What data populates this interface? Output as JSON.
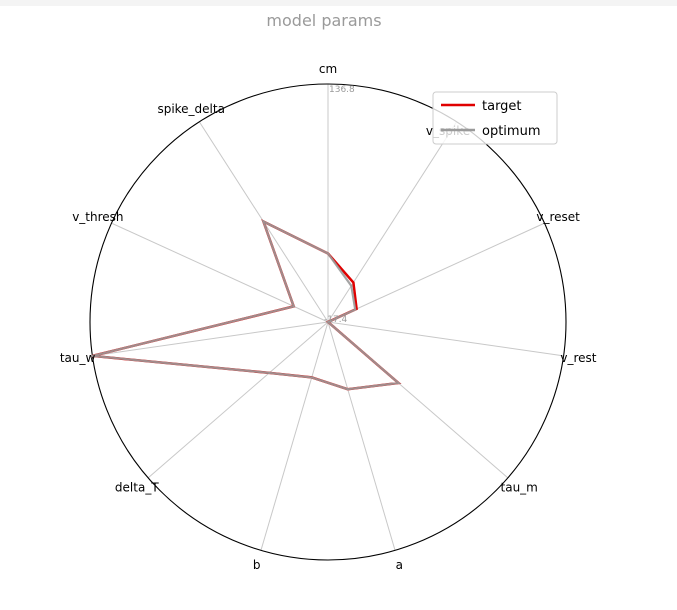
{
  "chart_data": {
    "type": "radar",
    "title": "model params",
    "axes": [
      "cm",
      "v_spike",
      "v_reset",
      "v_rest",
      "tau_m",
      "a",
      "b",
      "delta_T",
      "tau_w",
      "v_thresh",
      "spike_delta"
    ],
    "visible_axis_labels": [
      "cm",
      "v_reset",
      "v_rest",
      "tau_m",
      "a",
      "b",
      "delta_T",
      "tau_w",
      "v_thresh",
      "spike_delta"
    ],
    "overlapped_axis_label": "v_spike",
    "r_range": [
      -17.4,
      136.8
    ],
    "range_labels": {
      "max": "136.8",
      "min": "-17.4"
    },
    "grid": false,
    "legend_position": "upper-right",
    "series": [
      {
        "name": "target",
        "color": "#e00000",
        "values": [
          27.0,
          13.0,
          3.0,
          -17.4,
          43.0,
          28.0,
          20.0,
          33.0,
          136.8,
          7.0,
          60.0
        ]
      },
      {
        "name": "optimum",
        "color": "#9a9a9a",
        "values": [
          27.0,
          10.5,
          2.0,
          -17.4,
          43.0,
          28.0,
          20.0,
          33.0,
          136.8,
          7.0,
          60.0
        ]
      }
    ]
  }
}
